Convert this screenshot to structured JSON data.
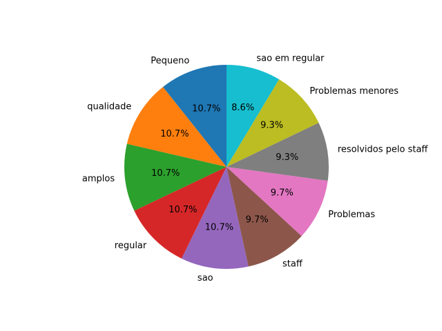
{
  "chart_data": {
    "type": "pie",
    "title": "",
    "start_angle_deg": 90,
    "direction": "counterclockwise",
    "slices": [
      {
        "label": "Pequeno",
        "value": 10.7,
        "pct_text": "10.7%",
        "color": "#1f77b4"
      },
      {
        "label": "qualidade",
        "value": 10.7,
        "pct_text": "10.7%",
        "color": "#ff7f0e"
      },
      {
        "label": "amplos",
        "value": 10.7,
        "pct_text": "10.7%",
        "color": "#2ca02c"
      },
      {
        "label": "regular",
        "value": 10.7,
        "pct_text": "10.7%",
        "color": "#d62728"
      },
      {
        "label": "sao",
        "value": 10.7,
        "pct_text": "10.7%",
        "color": "#9467bd"
      },
      {
        "label": "staff",
        "value": 9.7,
        "pct_text": "9.7%",
        "color": "#8c564b"
      },
      {
        "label": "Problemas",
        "value": 9.7,
        "pct_text": "9.7%",
        "color": "#e377c2"
      },
      {
        "label": "resolvidos pelo staff",
        "value": 9.3,
        "pct_text": "9.3%",
        "color": "#7f7f7f"
      },
      {
        "label": "Problemas menores",
        "value": 9.3,
        "pct_text": "9.3%",
        "color": "#bcbd22"
      },
      {
        "label": "sao em regular",
        "value": 8.6,
        "pct_text": "8.6%",
        "color": "#17becf"
      }
    ]
  }
}
